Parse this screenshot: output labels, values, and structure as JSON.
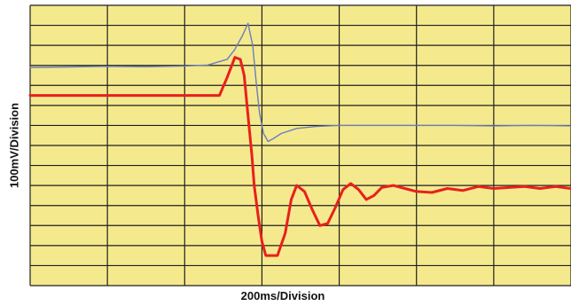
{
  "chart_data": {
    "type": "line",
    "title": "",
    "xlabel": "200ms/Division",
    "ylabel": "100mV/Division",
    "grid": true,
    "legend": "none",
    "colors": {
      "background": "#f5e98e",
      "grid": "#1f1f1f",
      "blue": "#6b7fb8",
      "red": "#e8201c"
    },
    "divisions": {
      "x": 7,
      "y": 14
    },
    "xlim": [
      0,
      7
    ],
    "ylim": [
      0,
      14
    ],
    "series": [
      {
        "color_key": "blue",
        "x": [
          0.0,
          0.5,
          1.0,
          1.5,
          2.0,
          2.3,
          2.55,
          2.65,
          2.75,
          2.82,
          2.88,
          2.93,
          2.97,
          3.02,
          3.08,
          3.15,
          3.25,
          3.45,
          3.7,
          4.0,
          4.5,
          5.0,
          5.5,
          6.0,
          6.5,
          7.0
        ],
        "y": [
          10.9,
          10.92,
          10.95,
          10.93,
          10.97,
          11.02,
          11.3,
          11.8,
          12.5,
          13.1,
          12.0,
          10.0,
          8.6,
          7.6,
          7.2,
          7.35,
          7.6,
          7.85,
          7.95,
          8.0,
          8.0,
          8.0,
          8.0,
          7.98,
          8.0,
          7.98
        ]
      },
      {
        "color_key": "red",
        "x": [
          0.0,
          0.5,
          1.0,
          1.5,
          2.0,
          2.45,
          2.55,
          2.65,
          2.72,
          2.77,
          2.82,
          2.87,
          2.9,
          2.95,
          3.0,
          3.05,
          3.1,
          3.2,
          3.3,
          3.38,
          3.45,
          3.55,
          3.65,
          3.75,
          3.85,
          3.95,
          4.05,
          4.15,
          4.25,
          4.35,
          4.45,
          4.55,
          4.7,
          4.85,
          5.0,
          5.2,
          5.4,
          5.6,
          5.8,
          6.0,
          6.2,
          6.4,
          6.6,
          6.8,
          7.0
        ],
        "y": [
          9.5,
          9.5,
          9.5,
          9.5,
          9.5,
          9.5,
          10.4,
          11.4,
          11.3,
          10.5,
          8.5,
          6.5,
          5.0,
          3.5,
          2.2,
          1.5,
          1.5,
          1.5,
          2.6,
          4.3,
          5.0,
          4.7,
          3.8,
          3.0,
          3.1,
          3.9,
          4.8,
          5.1,
          4.8,
          4.3,
          4.5,
          4.9,
          5.0,
          4.85,
          4.7,
          4.65,
          4.85,
          4.75,
          4.95,
          4.85,
          4.9,
          4.95,
          4.85,
          4.95,
          4.85
        ]
      }
    ]
  }
}
